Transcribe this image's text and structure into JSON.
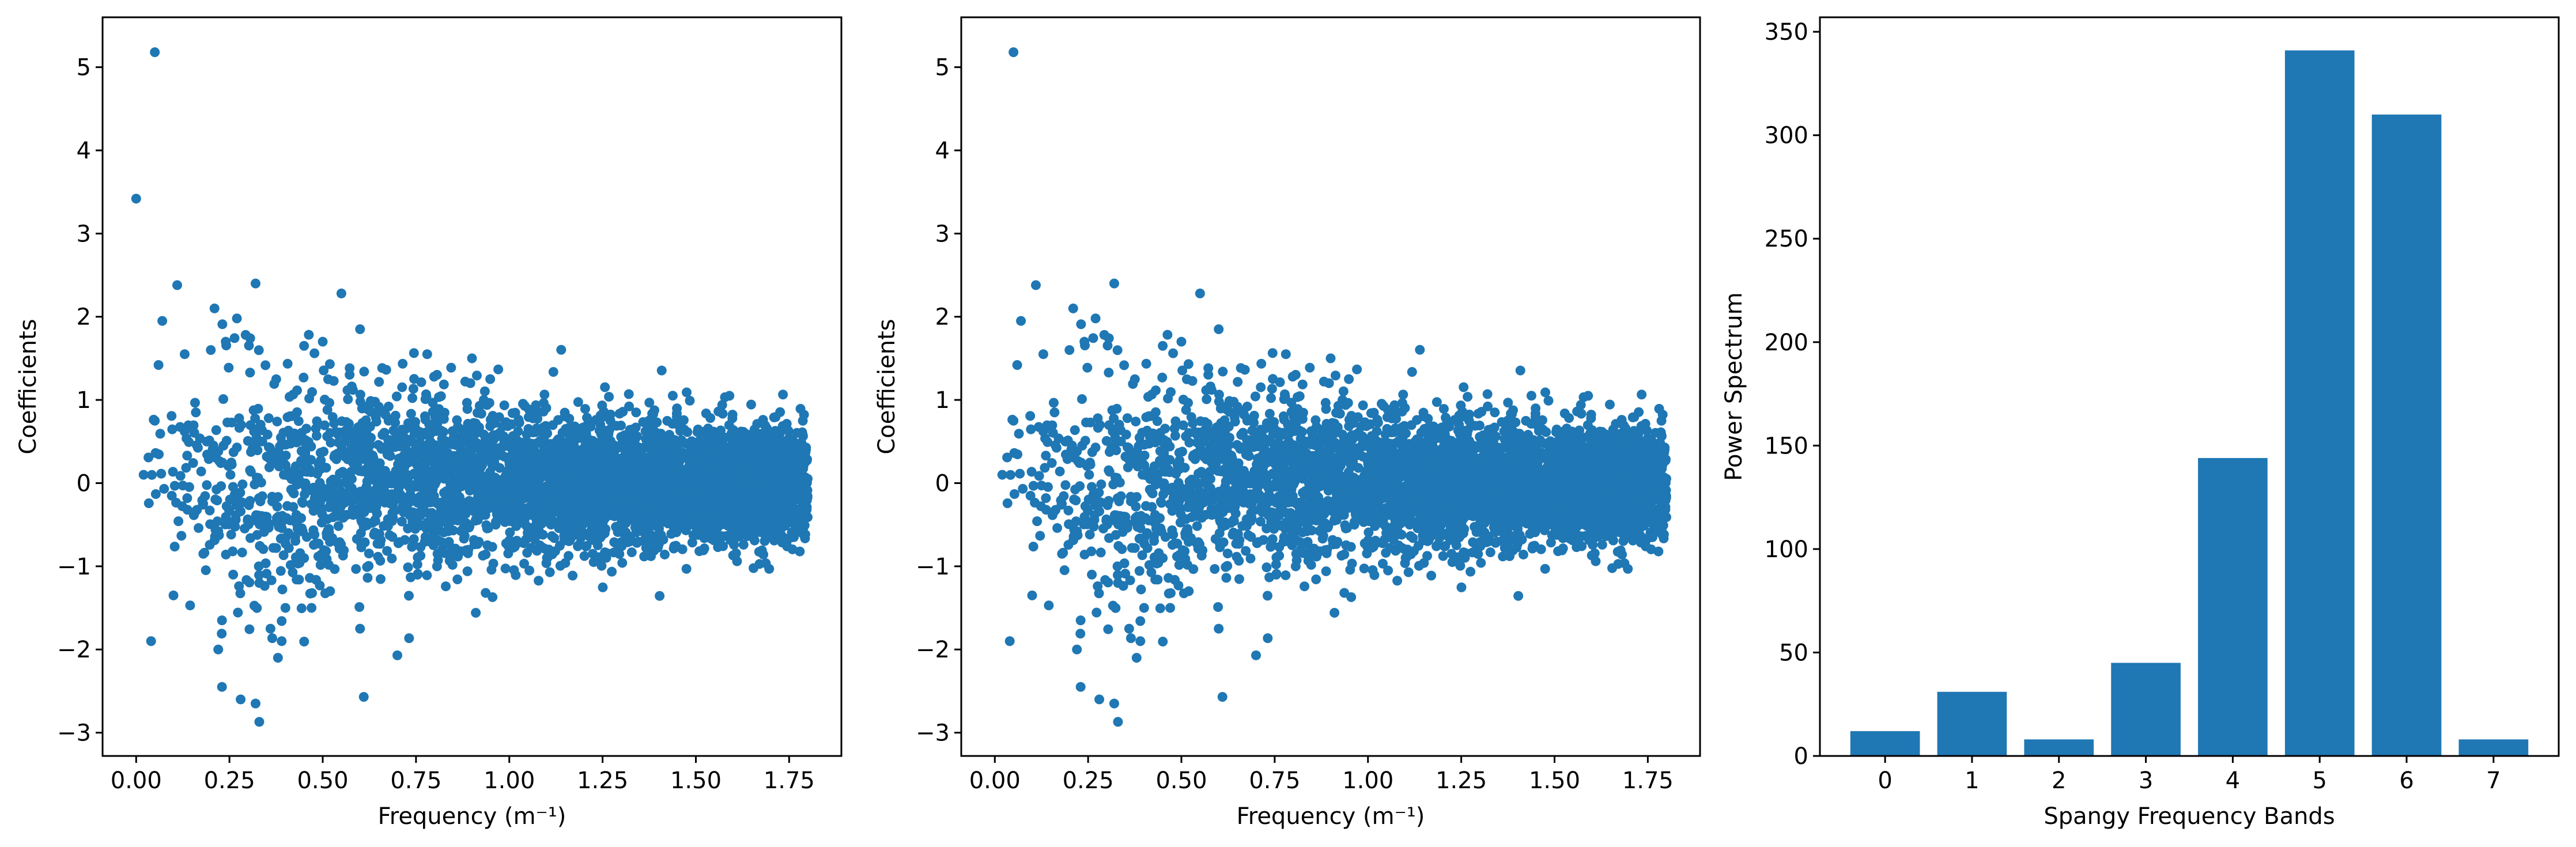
{
  "colors": {
    "series": "#1f77b4",
    "axis": "#000000",
    "background": "#ffffff"
  },
  "chart_data": [
    {
      "type": "scatter",
      "title": "",
      "xlabel": "Frequency (m⁻¹)",
      "ylabel": "Coefficients",
      "xlim": [
        -0.09,
        1.89
      ],
      "ylim": [
        -3.28,
        5.6
      ],
      "xticks": [
        0.0,
        0.25,
        0.5,
        0.75,
        1.0,
        1.25,
        1.5,
        1.75
      ],
      "xtick_labels": [
        "0.00",
        "0.25",
        "0.50",
        "0.75",
        "1.00",
        "1.25",
        "1.50",
        "1.75"
      ],
      "yticks": [
        -3,
        -2,
        -1,
        0,
        1,
        2,
        3,
        4,
        5
      ],
      "ytick_labels": [
        "−3",
        "−2",
        "−1",
        "0",
        "1",
        "2",
        "3",
        "4",
        "5"
      ],
      "grid": false,
      "points": [
        [
          0.0,
          3.42
        ],
        [
          0.05,
          5.18
        ],
        [
          0.02,
          0.1
        ],
        [
          0.04,
          -1.9
        ],
        [
          0.06,
          1.42
        ],
        [
          0.05,
          0.75
        ],
        [
          0.07,
          1.95
        ],
        [
          0.11,
          2.38
        ],
        [
          0.1,
          -1.35
        ],
        [
          0.13,
          1.55
        ],
        [
          0.21,
          2.1
        ],
        [
          0.22,
          -2.0
        ],
        [
          0.23,
          -1.65
        ],
        [
          0.23,
          -2.45
        ],
        [
          0.28,
          -2.6
        ],
        [
          0.32,
          -2.65
        ],
        [
          0.33,
          -2.87
        ],
        [
          0.32,
          2.4
        ],
        [
          0.36,
          -1.75
        ],
        [
          0.38,
          -2.1
        ],
        [
          0.39,
          -1.9
        ],
        [
          0.55,
          2.28
        ],
        [
          0.6,
          1.85
        ],
        [
          0.61,
          -2.57
        ],
        [
          0.7,
          -2.07
        ],
        [
          1.59,
          1.05
        ],
        [
          0.5,
          1.7
        ],
        [
          0.45,
          1.65
        ],
        [
          0.9,
          1.5
        ],
        [
          0.78,
          1.55
        ],
        [
          0.6,
          -1.75
        ],
        [
          0.4,
          -1.5
        ],
        [
          0.47,
          -1.5
        ],
        [
          0.33,
          -1.2
        ],
        [
          0.26,
          -1.1
        ],
        [
          0.18,
          -0.85
        ],
        [
          0.16,
          0.85
        ],
        [
          0.27,
          1.98
        ],
        [
          0.2,
          1.6
        ],
        [
          0.24,
          1.7
        ]
      ]
    },
    {
      "type": "scatter",
      "title": "",
      "xlabel": "Frequency (m⁻¹)",
      "ylabel": "Coefficients",
      "xlim": [
        -0.09,
        1.89
      ],
      "ylim": [
        -3.28,
        5.6
      ],
      "xticks": [
        0.0,
        0.25,
        0.5,
        0.75,
        1.0,
        1.25,
        1.5,
        1.75
      ],
      "xtick_labels": [
        "0.00",
        "0.25",
        "0.50",
        "0.75",
        "1.00",
        "1.25",
        "1.50",
        "1.75"
      ],
      "yticks": [
        -3,
        -2,
        -1,
        0,
        1,
        2,
        3,
        4,
        5
      ],
      "ytick_labels": [
        "−3",
        "−2",
        "−1",
        "0",
        "1",
        "2",
        "3",
        "4",
        "5"
      ],
      "grid": false,
      "points": [
        [
          0.05,
          5.18
        ],
        [
          0.02,
          0.1
        ],
        [
          0.04,
          -1.9
        ],
        [
          0.06,
          1.42
        ],
        [
          0.05,
          0.75
        ],
        [
          0.07,
          1.95
        ],
        [
          0.11,
          2.38
        ],
        [
          0.1,
          -1.35
        ],
        [
          0.13,
          1.55
        ],
        [
          0.21,
          2.1
        ],
        [
          0.22,
          -2.0
        ],
        [
          0.23,
          -1.65
        ],
        [
          0.23,
          -2.45
        ],
        [
          0.28,
          -2.6
        ],
        [
          0.32,
          -2.65
        ],
        [
          0.33,
          -2.87
        ],
        [
          0.32,
          2.4
        ],
        [
          0.36,
          -1.75
        ],
        [
          0.38,
          -2.1
        ],
        [
          0.39,
          -1.9
        ],
        [
          0.55,
          2.28
        ],
        [
          0.6,
          1.85
        ],
        [
          0.61,
          -2.57
        ],
        [
          0.7,
          -2.07
        ],
        [
          1.59,
          1.05
        ],
        [
          0.5,
          1.7
        ],
        [
          0.45,
          1.65
        ],
        [
          0.9,
          1.5
        ],
        [
          0.78,
          1.55
        ],
        [
          0.6,
          -1.75
        ],
        [
          0.4,
          -1.5
        ],
        [
          0.47,
          -1.5
        ],
        [
          0.33,
          -1.2
        ],
        [
          0.26,
          -1.1
        ],
        [
          0.18,
          -0.85
        ],
        [
          0.16,
          0.85
        ],
        [
          0.27,
          1.98
        ],
        [
          0.2,
          1.6
        ],
        [
          0.24,
          1.7
        ]
      ]
    },
    {
      "type": "bar",
      "title": "",
      "xlabel": "Spangy Frequency Bands",
      "ylabel": "Power Spectrum",
      "categories": [
        "0",
        "1",
        "2",
        "3",
        "4",
        "5",
        "6",
        "7"
      ],
      "values": [
        12,
        31,
        8,
        45,
        144,
        341,
        310,
        8
      ],
      "ylim": [
        0,
        357
      ],
      "yticks": [
        0,
        50,
        100,
        150,
        200,
        250,
        300,
        350
      ],
      "ytick_labels": [
        "0",
        "50",
        "100",
        "150",
        "200",
        "250",
        "300",
        "350"
      ],
      "grid": false
    }
  ]
}
